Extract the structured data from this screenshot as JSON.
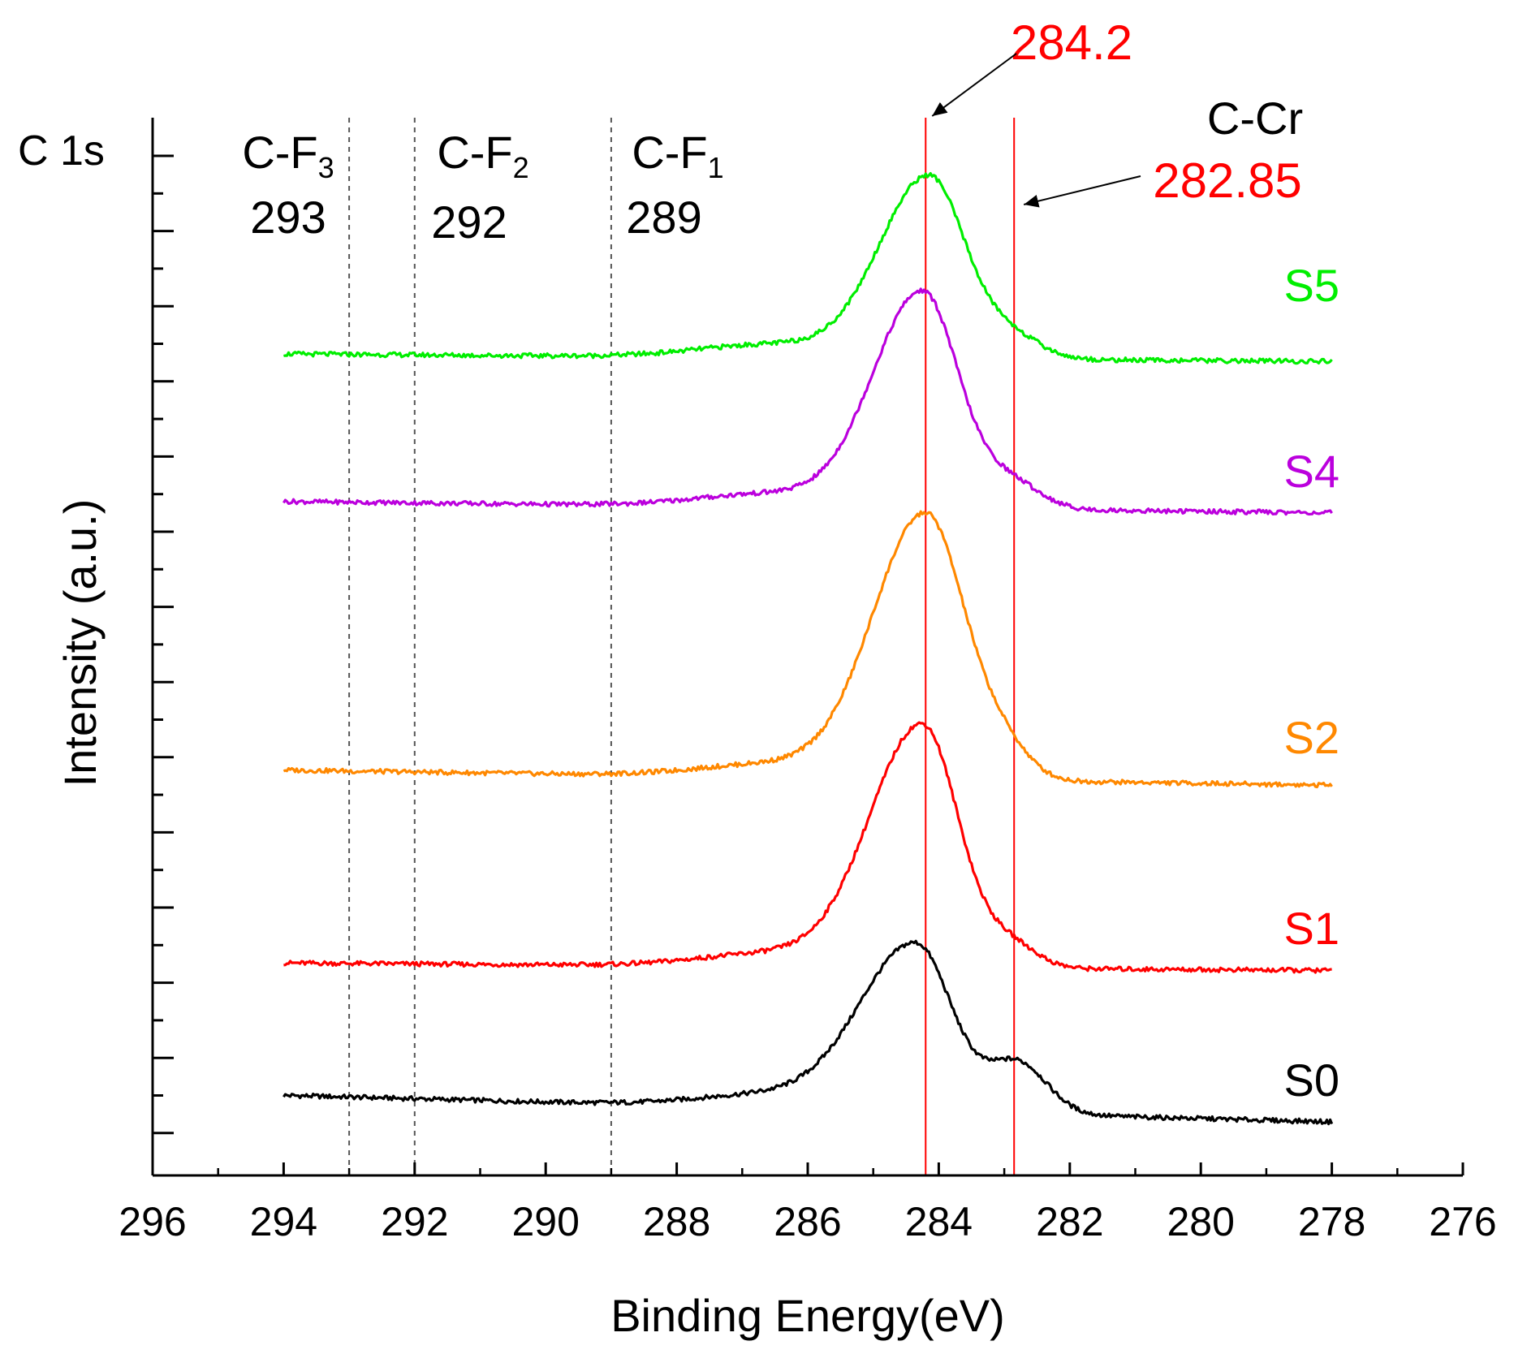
{
  "chart_data": {
    "type": "line",
    "title": "",
    "panel_label": "C 1s",
    "xlabel": "Binding Energy(eV)",
    "ylabel": "Intensity (a.u.)",
    "xlim": [
      296,
      276
    ],
    "x_reversed": true,
    "x_ticks": [
      296,
      294,
      292,
      290,
      288,
      286,
      284,
      282,
      280,
      278,
      276
    ],
    "y_ticks_unlabeled": true,
    "grid": false,
    "reference_lines": [
      {
        "x": 293,
        "style": "dashed",
        "color": "#555555",
        "label": "C-F",
        "subscript": "3",
        "value_label": "293"
      },
      {
        "x": 292,
        "style": "dashed",
        "color": "#555555",
        "label": "C-F",
        "subscript": "2",
        "value_label": "292"
      },
      {
        "x": 289,
        "style": "dashed",
        "color": "#555555",
        "label": "C-F",
        "subscript": "1",
        "value_label": "289"
      },
      {
        "x": 284.2,
        "style": "solid",
        "color": "#ff0000",
        "value_label": "284.2"
      },
      {
        "x": 282.85,
        "style": "solid",
        "color": "#ff0000",
        "label": "C-Cr",
        "value_label": "282.85"
      }
    ],
    "series": [
      {
        "name": "S0",
        "color": "#000000",
        "baseline_left": 0.7,
        "baseline_right": 0.0,
        "peak": 284.35,
        "peak_height": 4.4,
        "sigma_left": 0.85,
        "sigma_right": 0.55,
        "shoulder": 282.8,
        "shoulder_height": 1.35,
        "shoulder_sigma": 0.45
      },
      {
        "name": "S1",
        "color": "#ff0000",
        "baseline_left": 4.2,
        "baseline_right": 4.0,
        "peak": 284.25,
        "peak_height": 6.4,
        "sigma_left": 0.8,
        "sigma_right": 0.55,
        "shoulder": 282.9,
        "shoulder_height": 0.6,
        "shoulder_sigma": 0.4
      },
      {
        "name": "S2",
        "color": "#ff8800",
        "baseline_left": 9.3,
        "baseline_right": 8.9,
        "peak": 284.2,
        "peak_height": 7.0,
        "sigma_left": 0.8,
        "sigma_right": 0.6,
        "shoulder": 283.0,
        "shoulder_height": 0.7,
        "shoulder_sigma": 0.4
      },
      {
        "name": "S4",
        "color": "#bb00dd",
        "baseline_left": 16.4,
        "baseline_right": 16.1,
        "peak": 284.25,
        "peak_height": 5.7,
        "sigma_left": 0.75,
        "sigma_right": 0.55,
        "shoulder": 282.9,
        "shoulder_height": 0.7,
        "shoulder_sigma": 0.45
      },
      {
        "name": "S5",
        "color": "#00ee00",
        "baseline_left": 20.3,
        "baseline_right": 20.1,
        "peak": 284.15,
        "peak_height": 4.8,
        "sigma_left": 0.75,
        "sigma_right": 0.55,
        "shoulder": 282.9,
        "shoulder_height": 0.6,
        "shoulder_sigma": 0.45
      }
    ],
    "x_range_data": [
      294,
      278
    ]
  }
}
